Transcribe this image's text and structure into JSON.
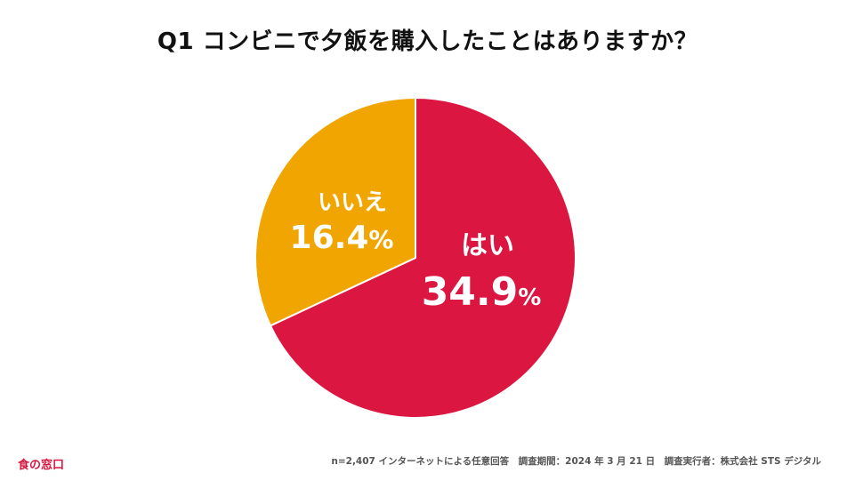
{
  "title": "Q1 コンビニで夕飯を購入したことはありますか？",
  "chart_data": {
    "type": "pie",
    "slices": [
      {
        "label": "はい",
        "value": 34.9,
        "value_text": "34.9",
        "unit": "%",
        "color": "#db1641"
      },
      {
        "label": "いいえ",
        "value": 16.4,
        "value_text": "16.4",
        "unit": "%",
        "color": "#f0a500"
      }
    ],
    "start": "12 o'clock",
    "direction": "clockwise",
    "slice_border_color": "#ffffff"
  },
  "footer": {
    "brand": "食の窓口",
    "note": "n=2,407 インターネットによる任意回答　調査期間：2024 年 3 月 21 日　調査実行者：株式会社 STS デジタル"
  }
}
